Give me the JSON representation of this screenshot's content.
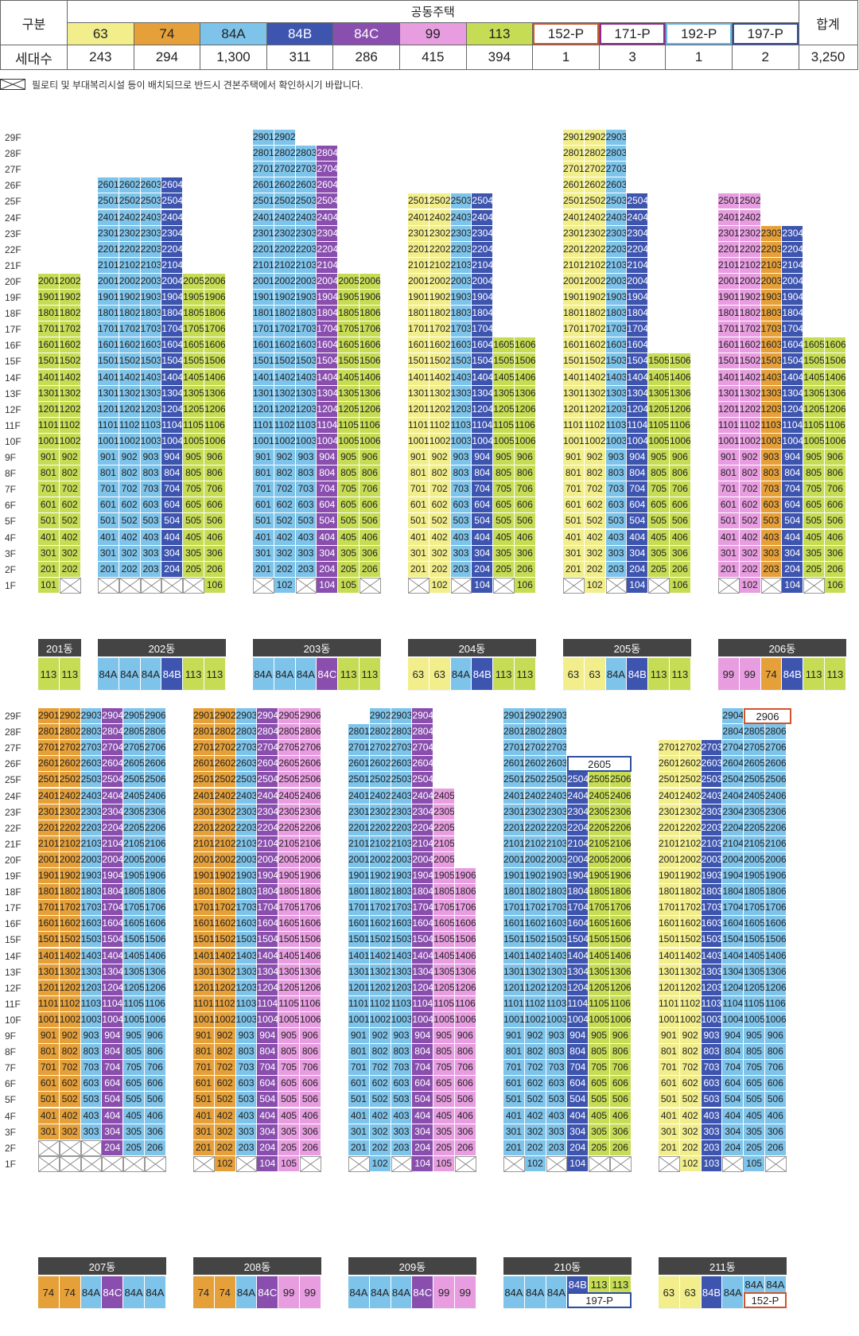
{
  "header": {
    "gubun": "구분",
    "group": "공동주택",
    "total_label": "합계",
    "count_label": "세대수",
    "types": [
      {
        "name": "63",
        "count": "243",
        "color": "#f2ee8c"
      },
      {
        "name": "74",
        "count": "294",
        "color": "#e6a03a"
      },
      {
        "name": "84A",
        "count": "1,300",
        "color": "#7ec3ea"
      },
      {
        "name": "84B",
        "count": "311",
        "color": "#3e55b0"
      },
      {
        "name": "84C",
        "count": "286",
        "color": "#8a4fae"
      },
      {
        "name": "99",
        "count": "415",
        "color": "#e79de0"
      },
      {
        "name": "113",
        "count": "394",
        "color": "#c6dc55"
      },
      {
        "name": "152-P",
        "count": "1",
        "color": "#d0552d"
      },
      {
        "name": "171-P",
        "count": "3",
        "color": "#8c2c8c"
      },
      {
        "name": "192-P",
        "count": "1",
        "color": "#6bb6e2"
      },
      {
        "name": "197-P",
        "count": "2",
        "color": "#2f4ea0"
      }
    ],
    "total": "3,250"
  },
  "legend": {
    "text": "필로티 및 부대복리시설 등이 배치되므로 반드시 견본주택에서 확인하시기 바랍니다."
  },
  "floors_top": [
    "29F",
    "28F",
    "27F",
    "26F",
    "25F",
    "24F",
    "23F",
    "22F",
    "21F",
    "20F",
    "19F",
    "18F",
    "17F",
    "16F",
    "15F",
    "14F",
    "13F",
    "12F",
    "11F",
    "10F",
    "9F",
    "8F",
    "7F",
    "6F",
    "5F",
    "4F",
    "3F",
    "2F",
    "1F"
  ],
  "floors_bottom": [
    "29F",
    "28F",
    "27F",
    "26F",
    "25F",
    "24F",
    "23F",
    "22F",
    "21F",
    "20F",
    "19F",
    "18F",
    "17F",
    "16F",
    "15F",
    "14F",
    "13F",
    "12F",
    "11F",
    "10F",
    "9F",
    "8F",
    "7F",
    "6F",
    "5F",
    "4F",
    "3F",
    "2F",
    "1F"
  ],
  "buildings": [
    {
      "name": "201동",
      "row": 0,
      "x": 48,
      "cols": 2,
      "lines": [
        {
          "type": "113",
          "top": 20,
          "empty1": []
        },
        {
          "type": "113",
          "top": 20,
          "empty1": [
            1
          ]
        }
      ],
      "types": [
        "113",
        "113"
      ]
    },
    {
      "name": "202동",
      "row": 0,
      "x": 123,
      "cols": 6,
      "lines": [
        {
          "type": "84A",
          "top": 26,
          "e": [
            1
          ]
        },
        {
          "type": "84A",
          "top": 26,
          "e": [
            1
          ]
        },
        {
          "type": "84A",
          "top": 26,
          "e": [
            1
          ]
        },
        {
          "type": "84B",
          "top": 26,
          "e": [
            1
          ]
        },
        {
          "type": "113",
          "top": 20,
          "e": [
            1
          ]
        },
        {
          "type": "113",
          "top": 20,
          "e": []
        }
      ],
      "types": [
        "84A",
        "84A",
        "84A",
        "84B",
        "113",
        "113"
      ]
    },
    {
      "name": "203동",
      "row": 0,
      "x": 318,
      "cols": 6,
      "lines": [
        {
          "type": "84A",
          "top": 29,
          "e": [
            1
          ]
        },
        {
          "type": "84A",
          "top": 29,
          "e": []
        },
        {
          "type": "84A",
          "top": 28,
          "e": [
            1
          ]
        },
        {
          "type": "84C",
          "top": 28,
          "e": []
        },
        {
          "type": "113",
          "top": 20,
          "e": []
        },
        {
          "type": "113",
          "top": 20,
          "e": [
            1
          ]
        }
      ],
      "types": [
        "84A",
        "84A",
        "84A",
        "84C",
        "113",
        "113"
      ]
    },
    {
      "name": "204동",
      "row": 0,
      "x": 513,
      "cols": 6,
      "lines": [
        {
          "type": "63",
          "top": 25,
          "e": [
            1
          ]
        },
        {
          "type": "63",
          "top": 25,
          "e": []
        },
        {
          "type": "84A",
          "top": 25,
          "e": [
            1
          ]
        },
        {
          "type": "84B",
          "top": 25,
          "e": []
        },
        {
          "type": "113",
          "top": 16,
          "e": [
            1
          ]
        },
        {
          "type": "113",
          "top": 16,
          "e": []
        }
      ],
      "types": [
        "63",
        "63",
        "84A",
        "84B",
        "113",
        "113"
      ]
    },
    {
      "name": "205동",
      "row": 0,
      "x": 708,
      "cols": 6,
      "lines": [
        {
          "type": "63",
          "top": 29,
          "e": [
            1
          ]
        },
        {
          "type": "63",
          "top": 29,
          "e": []
        },
        {
          "type": "84A",
          "top": 29,
          "e": [
            1
          ]
        },
        {
          "type": "84B",
          "top": 25,
          "e": []
        },
        {
          "type": "113",
          "top": 15,
          "e": [
            1
          ]
        },
        {
          "type": "113",
          "top": 15,
          "e": []
        }
      ],
      "types": [
        "63",
        "63",
        "84A",
        "84B",
        "113",
        "113"
      ]
    },
    {
      "name": "206동",
      "row": 0,
      "x": 903,
      "cols": 6,
      "lines": [
        {
          "type": "99",
          "top": 25,
          "e": [
            1
          ]
        },
        {
          "type": "99",
          "top": 25,
          "e": []
        },
        {
          "type": "74",
          "top": 23,
          "e": [
            1
          ]
        },
        {
          "type": "84B",
          "top": 23,
          "e": []
        },
        {
          "type": "113",
          "top": 16,
          "e": [
            1
          ]
        },
        {
          "type": "113",
          "top": 16,
          "e": []
        }
      ],
      "types": [
        "99",
        "99",
        "74",
        "84B",
        "113",
        "113"
      ]
    },
    {
      "name": "207동",
      "row": 1,
      "x": 48,
      "cols": 6,
      "lines": [
        {
          "type": "74",
          "top": 29,
          "e": [
            1,
            2
          ]
        },
        {
          "type": "74",
          "top": 29,
          "e": [
            1,
            2
          ]
        },
        {
          "type": "84A",
          "top": 29,
          "e": [
            1,
            2
          ]
        },
        {
          "type": "84C",
          "top": 29,
          "e": [
            1
          ]
        },
        {
          "type": "84A",
          "top": 29,
          "e": [
            1
          ]
        },
        {
          "type": "84A",
          "top": 29,
          "e": [
            1
          ]
        }
      ],
      "types": [
        "74",
        "74",
        "84A",
        "84C",
        "84A",
        "84A"
      ]
    },
    {
      "name": "208동",
      "row": 1,
      "x": 243,
      "cols": 6,
      "lines": [
        {
          "type": "74",
          "top": 29,
          "e": [
            1
          ]
        },
        {
          "type": "74",
          "top": 29,
          "e": []
        },
        {
          "type": "84A",
          "top": 29,
          "e": [
            1
          ]
        },
        {
          "type": "84C",
          "top": 29,
          "e": []
        },
        {
          "type": "99",
          "top": 29,
          "e": []
        },
        {
          "type": "99",
          "top": 29,
          "e": [
            1
          ]
        }
      ],
      "types": [
        "74",
        "74",
        "84A",
        "84C",
        "99",
        "99"
      ]
    },
    {
      "name": "209동",
      "row": 1,
      "x": 438,
      "cols": 6,
      "lines": [
        {
          "type": "84A",
          "top": 28,
          "e": [
            1
          ]
        },
        {
          "type": "84A",
          "top": 29,
          "e": []
        },
        {
          "type": "84A",
          "top": 29,
          "e": [
            1
          ]
        },
        {
          "type": "84C",
          "top": 29,
          "e": []
        },
        {
          "type": "99",
          "top": 24,
          "e": []
        },
        {
          "type": "99",
          "top": 19,
          "e": [
            1
          ]
        }
      ],
      "types": [
        "84A",
        "84A",
        "84A",
        "84C",
        "99",
        "99"
      ]
    },
    {
      "name": "210동",
      "row": 1,
      "x": 633,
      "cols": 6,
      "lines": [
        {
          "type": "84A",
          "top": 29,
          "e": [
            1
          ]
        },
        {
          "type": "84A",
          "top": 29,
          "e": []
        },
        {
          "type": "84A",
          "top": 29,
          "e": [
            1
          ]
        },
        {
          "type": "84B",
          "top": 25,
          "e": []
        },
        {
          "type": "113",
          "top": 25,
          "e": [
            1
          ]
        },
        {
          "type": "113",
          "top": 25,
          "e": [
            1
          ]
        }
      ],
      "types": [
        "84A",
        "84A",
        "84A",
        "84B",
        "113",
        "113"
      ]
    },
    {
      "name": "211동",
      "row": 1,
      "x": 828,
      "cols": 6,
      "lines": [
        {
          "type": "63",
          "top": 27,
          "e": [
            1
          ]
        },
        {
          "type": "63",
          "top": 27,
          "e": []
        },
        {
          "type": "84B",
          "top": 27,
          "e": []
        },
        {
          "type": "84A",
          "top": 29,
          "e": [
            1
          ]
        },
        {
          "type": "84A",
          "top": 28,
          "e": []
        },
        {
          "type": "84A",
          "top": 28,
          "e": [
            1
          ]
        }
      ],
      "types": [
        "63",
        "63",
        "84B",
        "84A",
        "84A",
        "84A"
      ]
    }
  ],
  "special": {
    "b210_penthouse": "2605",
    "b210_type": "197-P",
    "b211_penthouse": "2906",
    "b211_type": "152-P",
    "b211_2904": "2904"
  }
}
